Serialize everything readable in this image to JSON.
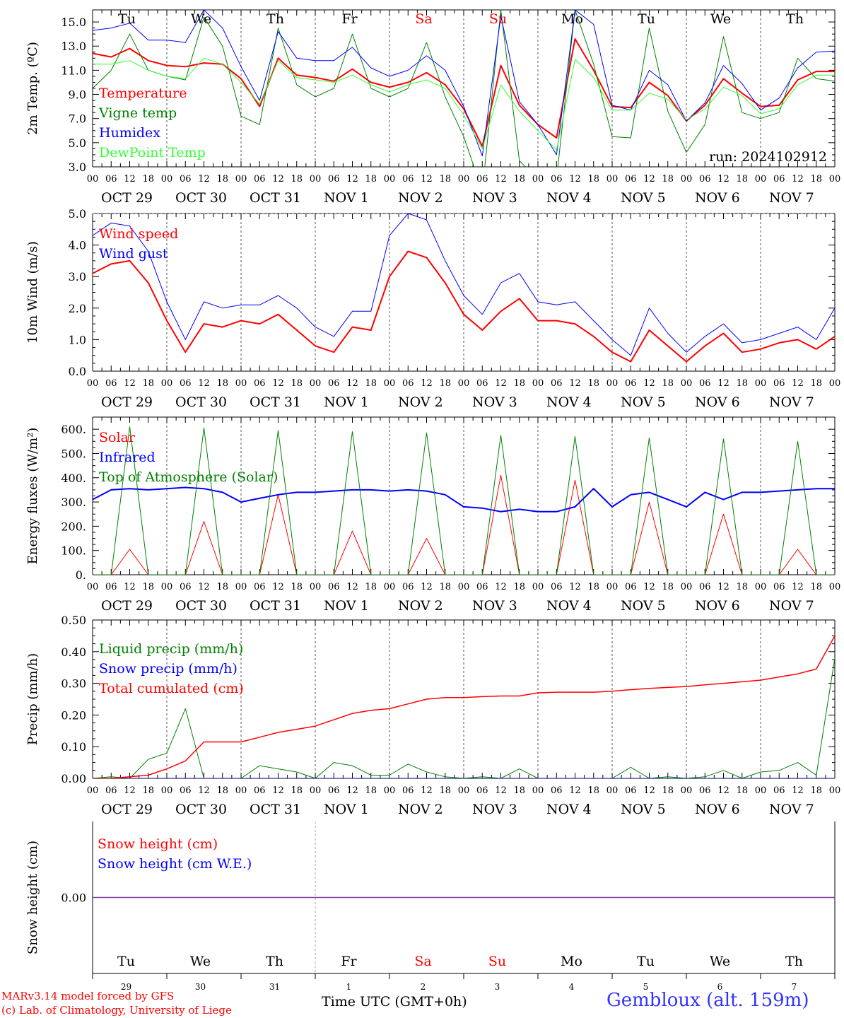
{
  "colors": {
    "red": "#ff0000",
    "green": "#008000",
    "blue": "#0000ff",
    "lightgreen": "#33ff33",
    "purple": "#7f3f9f",
    "axis": "#000000",
    "grid": "#555555"
  },
  "time_axis": {
    "hour_labels": [
      "00",
      "06",
      "12",
      "18"
    ],
    "date_labels": [
      "OCT 29",
      "OCT 30",
      "OCT 31",
      "NOV  1",
      "NOV  2",
      "NOV  3",
      "NOV  4",
      "NOV  5",
      "NOV  6",
      "NOV  7"
    ],
    "weekdays": [
      {
        "label": "Tu",
        "weekend": false
      },
      {
        "label": "We",
        "weekend": false
      },
      {
        "label": "Th",
        "weekend": false
      },
      {
        "label": "Fr",
        "weekend": false
      },
      {
        "label": "Sa",
        "weekend": true
      },
      {
        "label": "Su",
        "weekend": true
      },
      {
        "label": "Mo",
        "weekend": false
      },
      {
        "label": "Tu",
        "weekend": false
      },
      {
        "label": "We",
        "weekend": false
      },
      {
        "label": "Th",
        "weekend": false
      }
    ],
    "day_numbers": [
      "29",
      "30",
      "31",
      "1",
      "2",
      "3",
      "4",
      "5",
      "6",
      "7"
    ]
  },
  "footer": {
    "credit_line1": "MARv3.14 model forced by GFS",
    "credit_line2": "(c) Lab. of Climatology, University of Liege",
    "x_title": "Time UTC (GMT+0h)",
    "station": "Gembloux (alt. 159m)"
  },
  "chart_data": [
    {
      "type": "line",
      "ylabel": "2m Temp. (ºC)",
      "ylim": [
        3.0,
        16.0
      ],
      "yticks": [
        3.0,
        5.0,
        7.0,
        9.0,
        11.0,
        13.0,
        15.0
      ],
      "tick_format": "f1",
      "grid": false,
      "x": [
        0,
        0.25,
        0.5,
        0.75,
        1,
        1.25,
        1.5,
        1.75,
        2,
        2.25,
        2.5,
        2.75,
        3,
        3.25,
        3.5,
        3.75,
        4,
        4.25,
        4.5,
        4.75,
        5,
        5.25,
        5.5,
        5.75,
        6,
        6.25,
        6.5,
        6.75,
        7,
        7.25,
        7.5,
        7.75,
        8,
        8.25,
        8.5,
        8.75,
        9,
        9.25,
        9.5,
        9.75,
        10
      ],
      "series": [
        {
          "name": "Temperature",
          "color": "red",
          "width": 2,
          "values": [
            12.4,
            12.1,
            12.8,
            11.8,
            11.4,
            11.3,
            11.6,
            11.5,
            10.3,
            8.0,
            12.0,
            10.6,
            10.4,
            10.1,
            11.1,
            10.0,
            9.6,
            10.0,
            10.8,
            9.8,
            7.8,
            4.7,
            11.4,
            8.1,
            6.5,
            5.4,
            13.6,
            11.0,
            8.0,
            7.9,
            10.0,
            8.9,
            6.8,
            8.1,
            10.3,
            9.1,
            8.0,
            8.1,
            10.2,
            10.9,
            10.9
          ]
        },
        {
          "name": "Vigne temp",
          "color": "green",
          "width": 1,
          "values": [
            9.5,
            11.0,
            14.0,
            11.0,
            10.5,
            10.2,
            15.4,
            13.0,
            7.2,
            6.5,
            14.5,
            9.8,
            8.8,
            9.5,
            14.0,
            9.5,
            8.8,
            9.5,
            13.3,
            8.8,
            5.5,
            1.0,
            16.0,
            3.5,
            2.0,
            2.0,
            16.0,
            11.5,
            5.5,
            5.4,
            14.5,
            7.6,
            4.2,
            6.5,
            13.8,
            7.5,
            7.0,
            7.5,
            12.0,
            10.3,
            10.1
          ]
        },
        {
          "name": "Humidex",
          "color": "blue",
          "width": 1,
          "values": [
            14.3,
            14.5,
            14.9,
            13.5,
            13.5,
            13.3,
            16.0,
            14.5,
            11.3,
            8.5,
            14.2,
            12.0,
            11.8,
            11.8,
            12.9,
            11.2,
            10.5,
            11.0,
            12.2,
            11.0,
            8.0,
            3.9,
            15.5,
            8.4,
            6.5,
            4.0,
            16.0,
            14.8,
            8.1,
            7.7,
            11.0,
            9.8,
            6.8,
            8.3,
            11.4,
            9.9,
            7.7,
            8.7,
            11.2,
            12.5,
            12.6
          ]
        },
        {
          "name": "DewPoint Temp",
          "color": "lightgreen",
          "width": 1,
          "values": [
            11.5,
            11.5,
            11.8,
            11.0,
            10.5,
            10.3,
            12.0,
            11.5,
            10.0,
            8.2,
            11.8,
            10.4,
            10.2,
            10.0,
            10.6,
            9.8,
            9.2,
            9.8,
            10.2,
            9.5,
            7.3,
            4.5,
            9.8,
            7.6,
            6.0,
            4.4,
            11.9,
            10.4,
            7.7,
            7.7,
            9.1,
            8.6,
            6.9,
            7.8,
            9.6,
            8.9,
            7.4,
            7.8,
            9.8,
            10.6,
            10.6
          ]
        }
      ],
      "legend": [
        {
          "label": "Temperature",
          "color": "red"
        },
        {
          "label": "Vigne temp",
          "color": "green"
        },
        {
          "label": "Humidex",
          "color": "blue"
        },
        {
          "label": "DewPoint Temp",
          "color": "lightgreen"
        }
      ],
      "annotation": "run: 2024102912"
    },
    {
      "type": "line",
      "ylabel": "10m Wind (m/s)",
      "ylim": [
        0.0,
        5.0
      ],
      "yticks": [
        0.0,
        1.0,
        2.0,
        3.0,
        4.0,
        5.0
      ],
      "tick_format": "f1",
      "grid": false,
      "dashed_max": true,
      "x": [
        0,
        0.25,
        0.5,
        0.75,
        1,
        1.25,
        1.5,
        1.75,
        2,
        2.25,
        2.5,
        2.75,
        3,
        3.25,
        3.5,
        3.75,
        4,
        4.25,
        4.5,
        4.75,
        5,
        5.25,
        5.5,
        5.75,
        6,
        6.25,
        6.5,
        6.75,
        7,
        7.25,
        7.5,
        7.75,
        8,
        8.25,
        8.5,
        8.75,
        9,
        9.25,
        9.5,
        9.75,
        10
      ],
      "series": [
        {
          "name": "Wind speed",
          "color": "red",
          "width": 2,
          "values": [
            3.1,
            3.4,
            3.5,
            2.8,
            1.6,
            0.6,
            1.5,
            1.4,
            1.6,
            1.5,
            1.8,
            1.3,
            0.8,
            0.6,
            1.4,
            1.3,
            3.0,
            3.8,
            3.6,
            2.8,
            1.8,
            1.3,
            1.9,
            2.3,
            1.6,
            1.6,
            1.5,
            1.1,
            0.6,
            0.3,
            1.3,
            0.8,
            0.3,
            0.8,
            1.2,
            0.6,
            0.7,
            0.9,
            1.0,
            0.7,
            1.1
          ]
        },
        {
          "name": "Wind gust",
          "color": "blue",
          "width": 1,
          "values": [
            4.3,
            4.7,
            4.6,
            3.8,
            2.2,
            1.0,
            2.2,
            2.0,
            2.1,
            2.1,
            2.4,
            2.0,
            1.4,
            1.1,
            1.9,
            1.9,
            4.3,
            5.0,
            4.8,
            3.5,
            2.4,
            1.8,
            2.8,
            3.1,
            2.2,
            2.1,
            2.2,
            1.6,
            1.0,
            0.5,
            2.0,
            1.2,
            0.6,
            1.1,
            1.5,
            0.9,
            1.0,
            1.2,
            1.4,
            1.0,
            2.0
          ]
        }
      ],
      "legend": [
        {
          "label": "Wind speed",
          "color": "red"
        },
        {
          "label": "Wind gust",
          "color": "blue"
        }
      ]
    },
    {
      "type": "line",
      "ylabel": "Energy fluxes (W/m²)",
      "ylim": [
        0,
        650
      ],
      "yticks": [
        0,
        100,
        200,
        300,
        400,
        500,
        600
      ],
      "tick_format": "dot",
      "grid": false,
      "x": [
        0,
        0.25,
        0.5,
        0.75,
        1,
        1.25,
        1.5,
        1.75,
        2,
        2.25,
        2.5,
        2.75,
        3,
        3.25,
        3.5,
        3.75,
        4,
        4.25,
        4.5,
        4.75,
        5,
        5.25,
        5.5,
        5.75,
        6,
        6.25,
        6.5,
        6.75,
        7,
        7.25,
        7.5,
        7.75,
        8,
        8.25,
        8.5,
        8.75,
        9,
        9.25,
        9.5,
        9.75,
        10
      ],
      "series": [
        {
          "name": "Solar",
          "color": "red",
          "width": 1,
          "values": [
            0,
            0,
            105,
            0,
            0,
            0,
            220,
            0,
            0,
            0,
            330,
            0,
            0,
            0,
            180,
            0,
            0,
            0,
            150,
            0,
            0,
            0,
            410,
            0,
            0,
            0,
            390,
            0,
            0,
            0,
            300,
            0,
            0,
            0,
            250,
            0,
            0,
            0,
            105,
            0,
            0
          ]
        },
        {
          "name": "Infrared",
          "color": "blue",
          "width": 2,
          "values": [
            310,
            350,
            355,
            350,
            355,
            360,
            355,
            340,
            300,
            315,
            330,
            340,
            340,
            345,
            350,
            350,
            345,
            350,
            345,
            330,
            280,
            275,
            260,
            270,
            260,
            260,
            280,
            355,
            280,
            330,
            340,
            310,
            280,
            340,
            310,
            340,
            340,
            345,
            350,
            355,
            355
          ]
        },
        {
          "name": "Top of Atmosphere (Solar)",
          "color": "green",
          "width": 1,
          "values": [
            0,
            0,
            610,
            0,
            0,
            0,
            605,
            0,
            0,
            0,
            595,
            0,
            0,
            0,
            590,
            0,
            0,
            0,
            585,
            0,
            0,
            0,
            575,
            0,
            0,
            0,
            570,
            0,
            0,
            0,
            565,
            0,
            0,
            0,
            560,
            0,
            0,
            0,
            550,
            0,
            0
          ]
        }
      ],
      "legend": [
        {
          "label": "Solar",
          "color": "red"
        },
        {
          "label": "Infrared",
          "color": "blue"
        },
        {
          "label": "Top of Atmosphere (Solar)",
          "color": "green"
        }
      ]
    },
    {
      "type": "line",
      "ylabel": "Precip (mm/h)",
      "ylim": [
        0.0,
        0.5
      ],
      "yticks": [
        0.0,
        0.1,
        0.2,
        0.3,
        0.4,
        0.5
      ],
      "tick_format": "f2",
      "grid": false,
      "x": [
        0,
        0.25,
        0.5,
        0.75,
        1,
        1.25,
        1.5,
        1.75,
        2,
        2.25,
        2.5,
        2.75,
        3,
        3.25,
        3.5,
        3.75,
        4,
        4.25,
        4.5,
        4.75,
        5,
        5.25,
        5.5,
        5.75,
        6,
        6.25,
        6.5,
        6.75,
        7,
        7.25,
        7.5,
        7.75,
        8,
        8.25,
        8.5,
        8.75,
        9,
        9.25,
        9.5,
        9.75,
        10
      ],
      "series": [
        {
          "name": "Liquid precip (mm/h)",
          "color": "green",
          "width": 1,
          "values": [
            0.0,
            0.005,
            0.0,
            0.06,
            0.08,
            0.22,
            0.0,
            0.0,
            0.0,
            0.04,
            0.03,
            0.02,
            0.0,
            0.05,
            0.04,
            0.01,
            0.01,
            0.045,
            0.02,
            0.005,
            0.0,
            0.005,
            0.0,
            0.03,
            0.0,
            0.0,
            0.0,
            0.0,
            0.0,
            0.035,
            0.0,
            0.005,
            0.0,
            0.005,
            0.025,
            0.0,
            0.02,
            0.025,
            0.05,
            0.01,
            0.38
          ]
        },
        {
          "name": "Snow precip (mm/h)",
          "color": "blue",
          "width": 1,
          "values": [
            0,
            0,
            0,
            0,
            0,
            0,
            0,
            0,
            0,
            0,
            0,
            0,
            0,
            0,
            0,
            0,
            0,
            0,
            0,
            0,
            0,
            0,
            0,
            0,
            0,
            0,
            0,
            0,
            0,
            0,
            0,
            0,
            0,
            0,
            0,
            0,
            0,
            0,
            0,
            0,
            0
          ]
        },
        {
          "name": "Total cumulated (cm)",
          "color": "red",
          "width": 1.5,
          "values": [
            0.0,
            0.0,
            0.005,
            0.01,
            0.03,
            0.055,
            0.115,
            0.115,
            0.115,
            0.13,
            0.145,
            0.155,
            0.165,
            0.185,
            0.205,
            0.215,
            0.22,
            0.235,
            0.25,
            0.255,
            0.255,
            0.258,
            0.26,
            0.26,
            0.27,
            0.272,
            0.272,
            0.272,
            0.275,
            0.28,
            0.284,
            0.287,
            0.29,
            0.295,
            0.3,
            0.305,
            0.31,
            0.32,
            0.33,
            0.345,
            0.45
          ]
        }
      ],
      "legend": [
        {
          "label": "Liquid precip (mm/h)",
          "color": "green"
        },
        {
          "label": "Snow precip (mm/h)",
          "color": "blue"
        },
        {
          "label": "Total cumulated (cm)",
          "color": "red"
        }
      ]
    },
    {
      "type": "line",
      "ylabel": "Snow height (cm)",
      "ylim": [
        -1,
        1
      ],
      "yticks": [
        0.0
      ],
      "tick_format": "f2",
      "grid": false,
      "x": [
        0,
        10
      ],
      "series": [
        {
          "name": "Snow height (cm)",
          "color": "red",
          "width": 1.5,
          "values": [
            0.0,
            0.0
          ]
        },
        {
          "name": "Snow height (cm W.E.)",
          "color": "blue",
          "width": 1.5,
          "values": [
            0.0,
            0.0
          ]
        }
      ],
      "legend": [
        {
          "label": "Snow height (cm)",
          "color": "red"
        },
        {
          "label": "Snow height (cm W.E.)",
          "color": "blue"
        }
      ]
    }
  ]
}
